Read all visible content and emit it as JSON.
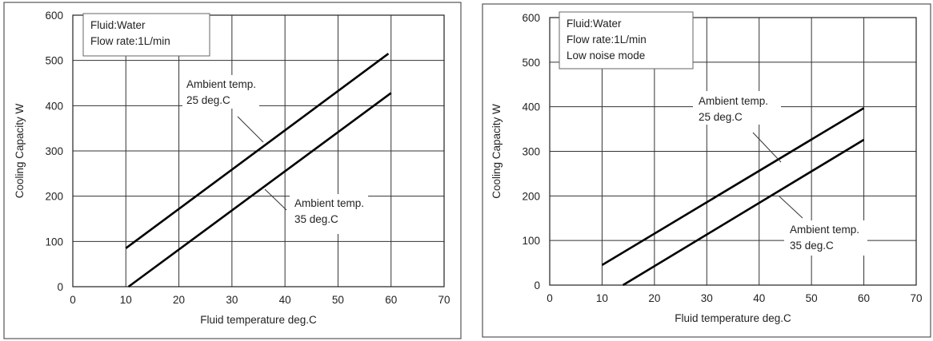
{
  "chart_data": [
    {
      "type": "line",
      "xlabel": "Fluid temperature deg.C",
      "ylabel": "Cooling Capacity W",
      "xlim": [
        0,
        70
      ],
      "ylim": [
        0,
        600
      ],
      "xticks": [
        0,
        10,
        20,
        30,
        40,
        50,
        60,
        70
      ],
      "yticks": [
        0,
        100,
        200,
        300,
        400,
        500,
        600
      ],
      "grid": true,
      "info_box": [
        "Fluid:Water",
        "Flow rate:1L/min"
      ],
      "series": [
        {
          "name": "Ambient temp. 25 deg.C",
          "label_lines": [
            "Ambient temp.",
            "25 deg.C"
          ],
          "x": [
            10,
            59.5
          ],
          "y": [
            85,
            515
          ]
        },
        {
          "name": "Ambient temp. 35 deg.C",
          "label_lines": [
            "Ambient temp.",
            "35 deg.C"
          ],
          "x": [
            10.5,
            60
          ],
          "y": [
            0,
            428
          ]
        }
      ]
    },
    {
      "type": "line",
      "xlabel": "Fluid temperature deg.C",
      "ylabel": "Cooling Capacity W",
      "xlim": [
        0,
        70
      ],
      "ylim": [
        0,
        600
      ],
      "xticks": [
        0,
        10,
        20,
        30,
        40,
        50,
        60,
        70
      ],
      "yticks": [
        0,
        100,
        200,
        300,
        400,
        500,
        600
      ],
      "grid": true,
      "info_box": [
        "Fluid:Water",
        "Flow rate:1L/min",
        "Low noise mode"
      ],
      "series": [
        {
          "name": "Ambient temp. 25 deg.C",
          "label_lines": [
            "Ambient temp.",
            "25 deg.C"
          ],
          "x": [
            10,
            60
          ],
          "y": [
            45,
            397
          ]
        },
        {
          "name": "Ambient temp. 35 deg.C",
          "label_lines": [
            "Ambient temp.",
            "35 deg.C"
          ],
          "x": [
            14,
            60
          ],
          "y": [
            0,
            326
          ]
        }
      ]
    }
  ]
}
